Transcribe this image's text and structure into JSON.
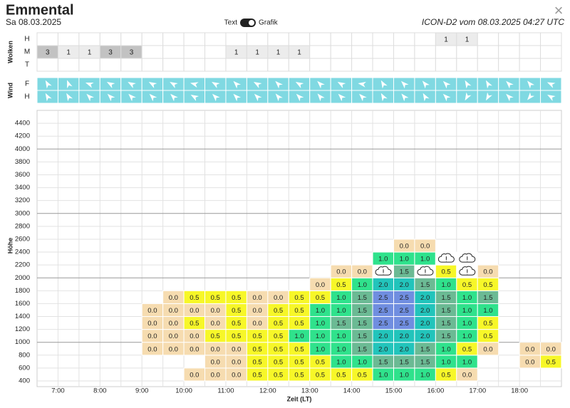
{
  "header": {
    "title": "Emmental",
    "date": "Sa 08.03.2025",
    "toggle_left": "Text",
    "toggle_right": "Grafik",
    "model": "ICON-D2 vom 08.03.2025 04:27 UTC",
    "close": "×"
  },
  "clouds": {
    "label": "Wolken",
    "cell_colors": {
      "3": "#c2c2c2",
      "1": "#ececec"
    },
    "rows": [
      {
        "name": "H",
        "cells": [
          null,
          null,
          null,
          null,
          null,
          null,
          null,
          null,
          null,
          null,
          null,
          null,
          null,
          null,
          null,
          null,
          null,
          null,
          null,
          "1",
          "1",
          null,
          null,
          null,
          null
        ]
      },
      {
        "name": "M",
        "cells": [
          "3",
          "1",
          "1",
          "3",
          "3",
          null,
          null,
          null,
          null,
          "1",
          "1",
          "1",
          "1",
          null,
          null,
          null,
          null,
          null,
          null,
          null,
          null,
          null,
          null,
          null,
          null
        ]
      },
      {
        "name": "T",
        "cells": [
          null,
          null,
          null,
          null,
          null,
          null,
          null,
          null,
          null,
          null,
          null,
          null,
          null,
          null,
          null,
          null,
          null,
          null,
          null,
          null,
          null,
          null,
          null,
          null,
          null
        ]
      }
    ]
  },
  "wind": {
    "label": "Wind",
    "color": "#80d9e2",
    "rows": [
      {
        "name": "F",
        "directions": [
          -30,
          -20,
          -70,
          -60,
          -60,
          -60,
          -60,
          -75,
          -60,
          -45,
          -60,
          -45,
          -60,
          -45,
          -60,
          -80,
          -30,
          -45,
          -40,
          -45,
          -30,
          -30,
          -45,
          -40,
          -65
        ]
      },
      {
        "name": "H",
        "directions": [
          -30,
          -30,
          -45,
          -45,
          -45,
          -45,
          -45,
          -60,
          -45,
          -45,
          -45,
          -40,
          -45,
          -40,
          -45,
          -45,
          -30,
          -40,
          -30,
          -45,
          -150,
          -150,
          -45,
          -140,
          -60
        ]
      }
    ]
  },
  "heatmap": {
    "y_label": "Höhe",
    "x_label": "Zeit (LT)",
    "ylim": [
      400,
      4600
    ],
    "yticks": [
      400,
      600,
      800,
      1000,
      1200,
      1400,
      1600,
      1800,
      2000,
      2200,
      2400,
      2600,
      2800,
      3000,
      3200,
      3400,
      3600,
      3800,
      4000,
      4200,
      4400
    ],
    "xticks": [
      "7:00",
      "8:00",
      "9:00",
      "10:00",
      "11:00",
      "12:00",
      "13:00",
      "14:00",
      "15:00",
      "16:00",
      "17:00",
      "18:00"
    ],
    "colors": {
      "0.0": "#f6dcb0",
      "0.5": "#f7f728",
      "1.0": "#2fe28c",
      "1.5": "#6bba94",
      "2.0": "#22c4bb",
      "2.5": "#708ee0"
    },
    "rows": [
      [
        null,
        null,
        null,
        null,
        null,
        null,
        null,
        "0.0",
        "0.0",
        "0.0",
        "0.5",
        "0.5",
        "0.5",
        "0.5",
        "0.5",
        "0.5",
        "1.0",
        "1.0",
        "1.0",
        "0.5",
        "0.0",
        null,
        null,
        null,
        null
      ],
      [
        null,
        null,
        null,
        null,
        null,
        null,
        null,
        null,
        "0.0",
        "0.0",
        "0.5",
        "0.5",
        "0.5",
        "0.5",
        "1.0",
        "1.0",
        "1.5",
        "1.5",
        "1.5",
        "1.0",
        "1.0",
        null,
        null,
        "0.0",
        "0.5"
      ],
      [
        null,
        null,
        null,
        null,
        null,
        "0.0",
        "0.0",
        "0.0",
        "0.0",
        "0.0",
        "0.5",
        "0.5",
        "0.5",
        "1.0",
        "1.0",
        "1.5",
        "2.0",
        "2.0",
        "1.5",
        "1.0",
        "0.5",
        "0.0",
        null,
        "0.0",
        "0.0"
      ],
      [
        null,
        null,
        null,
        null,
        null,
        "0.0",
        "0.0",
        "0.0",
        "0.5",
        "0.5",
        "0.5",
        "0.5",
        "1.0",
        "1.0",
        "1.0",
        "1.5",
        "2.0",
        "2.0",
        "2.0",
        "1.5",
        "1.0",
        "0.5",
        null,
        null,
        null
      ],
      [
        null,
        null,
        null,
        null,
        null,
        "0.0",
        "0.0",
        "0.5",
        "0.0",
        "0.5",
        "0.0",
        "0.5",
        "0.5",
        "1.0",
        "1.5",
        "1.5",
        "2.5",
        "2.5",
        "2.0",
        "1.5",
        "1.0",
        "0.5",
        null,
        null,
        null
      ],
      [
        null,
        null,
        null,
        null,
        null,
        "0.0",
        "0.0",
        "0.0",
        "0.0",
        "0.5",
        "0.0",
        "0.5",
        "0.5",
        "1.0",
        "1.0",
        "1.5",
        "2.5",
        "2.5",
        "2.0",
        "1.5",
        "1.0",
        "1.0",
        null,
        null,
        null
      ],
      [
        null,
        null,
        null,
        null,
        null,
        null,
        "0.0",
        "0.5",
        "0.5",
        "0.5",
        "0.0",
        "0.0",
        "0.5",
        "0.5",
        "1.0",
        "1.5",
        "2.5",
        "2.5",
        "2.0",
        "1.5",
        "1.0",
        "1.5",
        null,
        null,
        null
      ],
      [
        null,
        null,
        null,
        null,
        null,
        null,
        null,
        null,
        null,
        null,
        null,
        null,
        null,
        "0.0",
        "0.5",
        "1.0",
        "2.0",
        "2.0",
        "1.5",
        "1.0",
        "0.5",
        "0.5",
        null,
        null,
        null
      ],
      [
        null,
        null,
        null,
        null,
        null,
        null,
        null,
        null,
        null,
        null,
        null,
        null,
        null,
        null,
        "0.0",
        "0.0",
        {
          "icon": "cloud"
        },
        "1.5",
        {
          "icon": "cloud"
        },
        "0.5",
        {
          "icon": "cloud"
        },
        "0.0",
        null,
        null,
        null
      ],
      [
        null,
        null,
        null,
        null,
        null,
        null,
        null,
        null,
        null,
        null,
        null,
        null,
        null,
        null,
        null,
        null,
        "1.0",
        "1.0",
        "1.0",
        {
          "icon": "cloud"
        },
        {
          "icon": "cloud"
        },
        null,
        null,
        null,
        null
      ],
      [
        null,
        null,
        null,
        null,
        null,
        null,
        null,
        null,
        null,
        null,
        null,
        null,
        null,
        null,
        null,
        null,
        null,
        "0.0",
        "0.0",
        null,
        null,
        null,
        null,
        null,
        null
      ]
    ]
  }
}
